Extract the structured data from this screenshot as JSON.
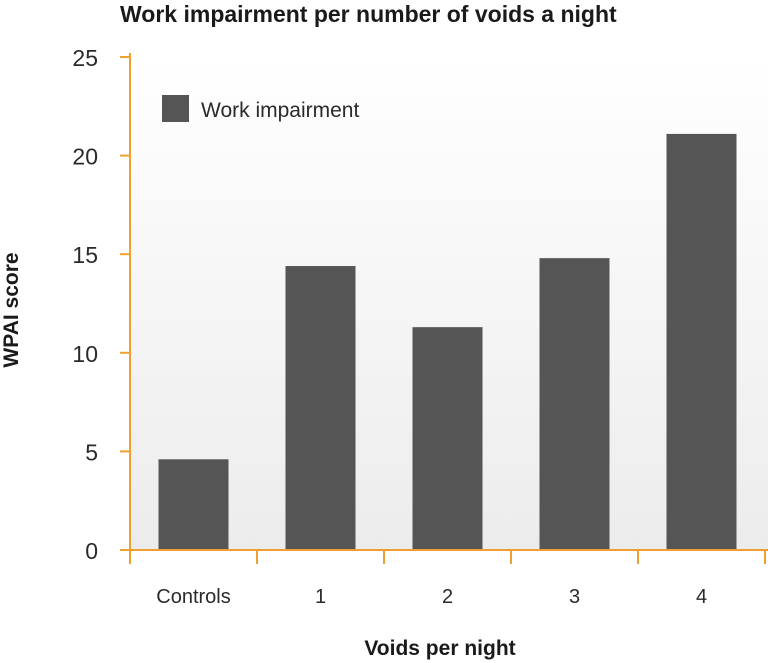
{
  "colors": {
    "axis": "#f0a030",
    "bar": "#555555",
    "plot_bg_top": "#ffffff",
    "plot_bg_bottom": "#ececec"
  },
  "chart_data": {
    "type": "bar",
    "title": "Work impairment per number of voids a night",
    "xlabel": "Voids per night",
    "ylabel": "WPAI score",
    "categories": [
      "Controls",
      "1",
      "2",
      "3",
      "4"
    ],
    "series": [
      {
        "name": "Work impairment",
        "values": [
          4.6,
          14.4,
          11.3,
          14.8,
          21.1
        ]
      }
    ],
    "ylim": [
      0,
      25
    ],
    "yticks": [
      0,
      5,
      10,
      15,
      20,
      25
    ],
    "grid": false,
    "legend": "top-left"
  }
}
